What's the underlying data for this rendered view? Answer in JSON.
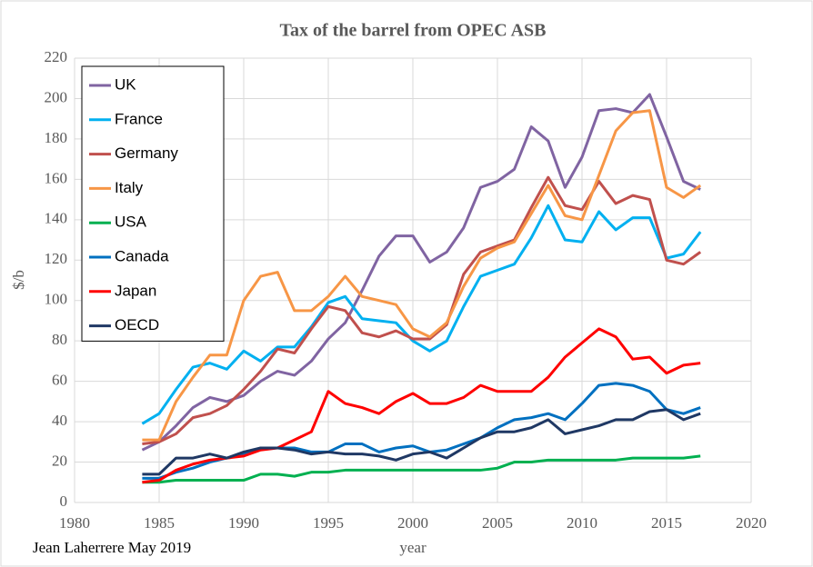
{
  "chart_data": {
    "type": "line",
    "title": "Tax of the barrel from OPEC ASB",
    "ylabel": "$/b",
    "xlabel": "year",
    "annotation": "Jean Laherrere May 2019",
    "x": [
      1984,
      1985,
      1986,
      1987,
      1988,
      1989,
      1990,
      1991,
      1992,
      1993,
      1994,
      1995,
      1996,
      1997,
      1998,
      1999,
      2000,
      2001,
      2002,
      2003,
      2004,
      2005,
      2006,
      2007,
      2008,
      2009,
      2010,
      2011,
      2012,
      2013,
      2014,
      2015,
      2016,
      2017
    ],
    "xlim": [
      1980,
      2020
    ],
    "xticks": [
      1980,
      1985,
      1990,
      1995,
      2000,
      2005,
      2010,
      2015,
      2020
    ],
    "ylim": [
      0,
      220
    ],
    "yticks": [
      0,
      20,
      40,
      60,
      80,
      100,
      120,
      140,
      160,
      180,
      200,
      220
    ],
    "grid": true,
    "legend": "upper left",
    "series": [
      {
        "name": "UK",
        "color": "#8064a2",
        "values": [
          26,
          30,
          38,
          47,
          52,
          50,
          53,
          60,
          65,
          63,
          70,
          81,
          89,
          105,
          122,
          132,
          132,
          119,
          124,
          136,
          156,
          159,
          165,
          186,
          179,
          156,
          171,
          194,
          195,
          193,
          202,
          181,
          159,
          155
        ]
      },
      {
        "name": "France",
        "color": "#00b0f0",
        "values": [
          39,
          44,
          56,
          67,
          69,
          66,
          75,
          70,
          77,
          77,
          87,
          99,
          102,
          91,
          90,
          89,
          80,
          75,
          80,
          97,
          112,
          115,
          118,
          131,
          147,
          130,
          129,
          144,
          135,
          141,
          141,
          121,
          123,
          134
        ]
      },
      {
        "name": "Germany",
        "color": "#c0504d",
        "values": [
          29,
          30,
          34,
          42,
          44,
          48,
          56,
          65,
          76,
          74,
          86,
          97,
          95,
          84,
          82,
          85,
          81,
          81,
          88,
          113,
          124,
          127,
          130,
          146,
          161,
          147,
          145,
          159,
          148,
          152,
          150,
          120,
          118,
          124
        ]
      },
      {
        "name": "Italy",
        "color": "#f79646",
        "values": [
          31,
          31,
          50,
          62,
          73,
          73,
          100,
          112,
          114,
          95,
          95,
          102,
          112,
          102,
          100,
          98,
          86,
          82,
          89,
          107,
          121,
          126,
          129,
          143,
          157,
          142,
          140,
          162,
          184,
          193,
          194,
          156,
          151,
          157
        ]
      },
      {
        "name": "USA",
        "color": "#00b050",
        "values": [
          10,
          10,
          11,
          11,
          11,
          11,
          11,
          14,
          14,
          13,
          15,
          15,
          16,
          16,
          16,
          16,
          16,
          16,
          16,
          16,
          16,
          17,
          20,
          20,
          21,
          21,
          21,
          21,
          21,
          22,
          22,
          22,
          22,
          23
        ]
      },
      {
        "name": "Canada",
        "color": "#0070c0",
        "values": [
          12,
          12,
          15,
          17,
          20,
          22,
          24,
          27,
          27,
          27,
          25,
          25,
          29,
          29,
          25,
          27,
          28,
          25,
          26,
          29,
          32,
          37,
          41,
          42,
          44,
          41,
          49,
          58,
          59,
          58,
          55,
          46,
          44,
          47
        ]
      },
      {
        "name": "Japan",
        "color": "#ff0000",
        "values": [
          10,
          11,
          16,
          19,
          21,
          22,
          23,
          26,
          27,
          31,
          35,
          55,
          49,
          47,
          44,
          50,
          54,
          49,
          49,
          52,
          58,
          55,
          55,
          55,
          62,
          72,
          79,
          86,
          82,
          71,
          72,
          64,
          68,
          69
        ]
      },
      {
        "name": "OECD",
        "color": "#1f3864",
        "values": [
          14,
          14,
          22,
          22,
          24,
          22,
          25,
          27,
          27,
          26,
          24,
          25,
          24,
          24,
          23,
          21,
          24,
          25,
          22,
          27,
          32,
          35,
          35,
          37,
          41,
          34,
          36,
          38,
          41,
          41,
          45,
          46,
          41,
          44
        ]
      }
    ]
  }
}
